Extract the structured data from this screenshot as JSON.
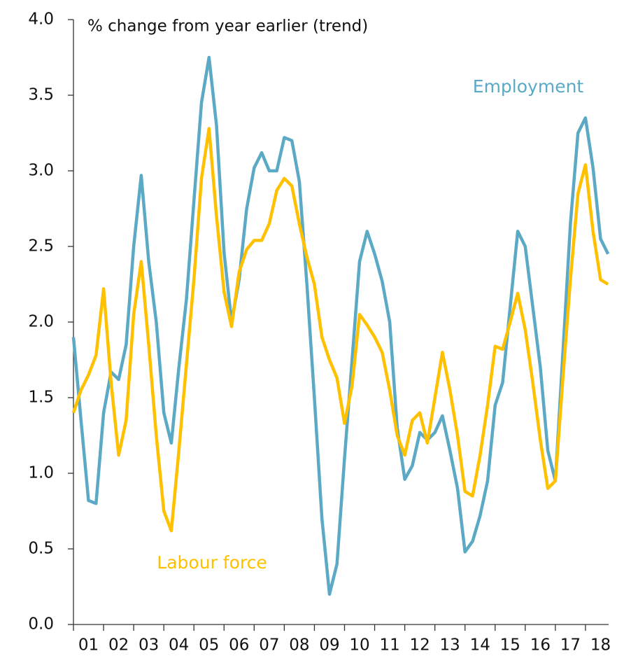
{
  "chart_data": {
    "type": "line",
    "ylabel": "% change from year earlier (trend)",
    "x": [
      2001,
      2001.25,
      2001.5,
      2001.75,
      2002,
      2002.25,
      2002.5,
      2002.75,
      2003,
      2003.25,
      2003.5,
      2003.75,
      2004,
      2004.25,
      2004.5,
      2004.75,
      2005,
      2005.25,
      2005.5,
      2005.75,
      2006,
      2006.25,
      2006.5,
      2006.75,
      2007,
      2007.25,
      2007.5,
      2007.75,
      2008,
      2008.25,
      2008.5,
      2008.75,
      2009,
      2009.25,
      2009.5,
      2009.75,
      2010,
      2010.25,
      2010.5,
      2010.75,
      2011,
      2011.25,
      2011.5,
      2011.75,
      2012,
      2012.25,
      2012.5,
      2012.75,
      2013,
      2013.25,
      2013.5,
      2013.75,
      2014,
      2014.25,
      2014.5,
      2014.75,
      2015,
      2015.25,
      2015.5,
      2015.75,
      2016,
      2016.25,
      2016.5,
      2016.75,
      2017,
      2017.25,
      2017.5,
      2017.75,
      2018,
      2018.25,
      2018.5,
      2018.75
    ],
    "series": [
      {
        "name": "Employment",
        "color": "#5ba9c4",
        "values": [
          1.9,
          1.35,
          0.82,
          0.8,
          1.4,
          1.67,
          1.62,
          1.85,
          2.5,
          2.97,
          2.4,
          2.0,
          1.4,
          1.2,
          1.7,
          2.15,
          2.8,
          3.45,
          3.75,
          3.3,
          2.46,
          2.0,
          2.28,
          2.75,
          3.02,
          3.12,
          3.0,
          3.0,
          3.22,
          3.2,
          2.93,
          2.25,
          1.5,
          0.7,
          0.2,
          0.4,
          1.1,
          1.75,
          2.4,
          2.6,
          2.45,
          2.27,
          2.0,
          1.3,
          0.96,
          1.05,
          1.27,
          1.22,
          1.27,
          1.38,
          1.15,
          0.9,
          0.48,
          0.55,
          0.72,
          0.95,
          1.45,
          1.6,
          2.1,
          2.6,
          2.5,
          2.1,
          1.7,
          1.15,
          0.95,
          1.8,
          2.65,
          3.25,
          3.35,
          3.02,
          2.55,
          2.45
        ]
      },
      {
        "name": "Labour force",
        "color": "#ffc000",
        "values": [
          1.4,
          1.55,
          1.65,
          1.78,
          2.22,
          1.6,
          1.12,
          1.35,
          2.05,
          2.4,
          1.85,
          1.25,
          0.75,
          0.62,
          1.15,
          1.72,
          2.28,
          2.95,
          3.28,
          2.7,
          2.2,
          1.97,
          2.33,
          2.48,
          2.54,
          2.54,
          2.65,
          2.87,
          2.95,
          2.9,
          2.65,
          2.43,
          2.25,
          1.9,
          1.75,
          1.63,
          1.33,
          1.58,
          2.05,
          1.98,
          1.9,
          1.8,
          1.55,
          1.25,
          1.12,
          1.35,
          1.4,
          1.2,
          1.5,
          1.8,
          1.55,
          1.25,
          0.88,
          0.85,
          1.12,
          1.45,
          1.84,
          1.82,
          2.0,
          2.19,
          1.95,
          1.6,
          1.22,
          0.9,
          0.95,
          1.63,
          2.28,
          2.85,
          3.04,
          2.6,
          2.28,
          2.25
        ]
      }
    ],
    "xlim": [
      2001,
      2019
    ],
    "xticks": [
      {
        "value": 2001.5,
        "label": "01"
      },
      {
        "value": 2002.5,
        "label": "02"
      },
      {
        "value": 2003.5,
        "label": "03"
      },
      {
        "value": 2004.5,
        "label": "04"
      },
      {
        "value": 2005.5,
        "label": "05"
      },
      {
        "value": 2006.5,
        "label": "06"
      },
      {
        "value": 2007.5,
        "label": "07"
      },
      {
        "value": 2008.5,
        "label": "08"
      },
      {
        "value": 2009.5,
        "label": "09"
      },
      {
        "value": 2010.5,
        "label": "10"
      },
      {
        "value": 2011.5,
        "label": "11"
      },
      {
        "value": 2012.5,
        "label": "12"
      },
      {
        "value": 2013.5,
        "label": "13"
      },
      {
        "value": 2014.5,
        "label": "14"
      },
      {
        "value": 2015.5,
        "label": "15"
      },
      {
        "value": 2016.5,
        "label": "16"
      },
      {
        "value": 2017.5,
        "label": "17"
      },
      {
        "value": 2018.5,
        "label": "18"
      }
    ],
    "ylim": [
      0,
      4
    ],
    "yticks": [
      {
        "value": 0,
        "label": "0.0"
      },
      0.5,
      {
        "value": 1,
        "label": "1.0"
      },
      1.5,
      {
        "value": 2,
        "label": "2.0"
      },
      2.5,
      {
        "value": 3,
        "label": "3.0"
      },
      3.5,
      {
        "value": 4,
        "label": "4.0"
      }
    ],
    "grid": false
  }
}
